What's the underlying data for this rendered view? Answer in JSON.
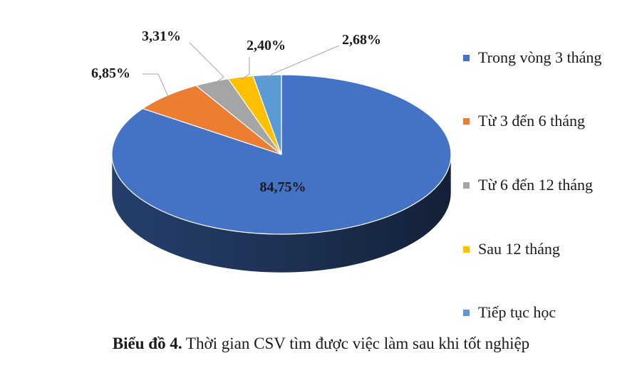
{
  "chart_data": {
    "type": "pie",
    "style": "3d",
    "categories": [
      "Trong vòng 3 tháng",
      "Từ 3 đến 6 tháng",
      "Từ 6 đến 12 tháng",
      "Sau 12 tháng",
      "Tiếp tục học"
    ],
    "values": [
      84.75,
      6.85,
      3.31,
      2.4,
      2.68
    ],
    "data_labels": [
      "84,75%",
      "6,85%",
      "3,31%",
      "2,40%",
      "2,68%"
    ],
    "colors": [
      "#4472c4",
      "#ed7d31",
      "#a5a5a5",
      "#ffc000",
      "#5b9bd5"
    ],
    "legend_position": "right"
  },
  "caption": {
    "bold": "Biểu đồ 4.",
    "text": " Thời gian CSV tìm được việc  làm  sau khi tốt nghiệp"
  }
}
